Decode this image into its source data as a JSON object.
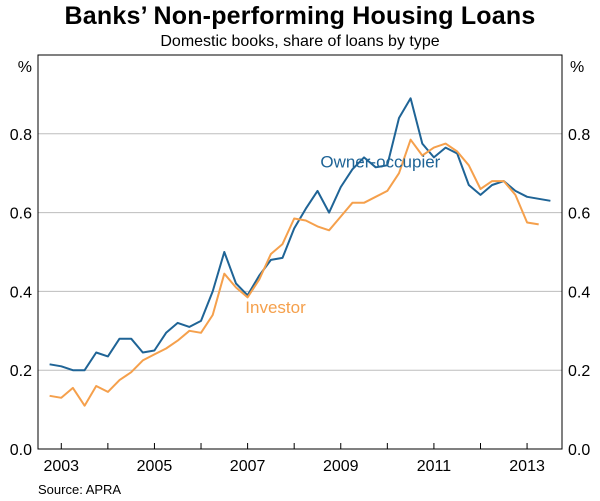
{
  "title": "Banks’ Non-performing Housing Loans",
  "subtitle": "Domestic books, share of loans by type",
  "source": "Source: APRA",
  "chart_data": {
    "type": "line",
    "title": "Banks’ Non-performing Housing Loans",
    "subtitle": "Domestic books, share of loans by type",
    "y_unit_left": "%",
    "y_unit_right": "%",
    "ylim": [
      0,
      1.0
    ],
    "yticks": [
      0.0,
      0.2,
      0.4,
      0.6,
      0.8
    ],
    "ytick_labels": [
      "0.0",
      "0.2",
      "0.4",
      "0.6",
      "0.8"
    ],
    "xlim": [
      2002.5,
      2013.75
    ],
    "xticks": [
      2003,
      2005,
      2007,
      2009,
      2011,
      2013
    ],
    "xtick_labels": [
      "2003",
      "2005",
      "2007",
      "2009",
      "2011",
      "2013"
    ],
    "grid": true,
    "series": [
      {
        "name": "Owner-occupier",
        "color": "#1f6496",
        "x": [
          2002.75,
          2003.0,
          2003.25,
          2003.5,
          2003.75,
          2004.0,
          2004.25,
          2004.5,
          2004.75,
          2005.0,
          2005.25,
          2005.5,
          2005.75,
          2006.0,
          2006.25,
          2006.5,
          2006.75,
          2007.0,
          2007.25,
          2007.5,
          2007.75,
          2008.0,
          2008.25,
          2008.5,
          2008.75,
          2009.0,
          2009.25,
          2009.5,
          2009.75,
          2010.0,
          2010.25,
          2010.5,
          2010.75,
          2011.0,
          2011.25,
          2011.5,
          2011.75,
          2012.0,
          2012.25,
          2012.5,
          2012.75,
          2013.0,
          2013.25,
          2013.5
        ],
        "values": [
          0.215,
          0.21,
          0.2,
          0.2,
          0.245,
          0.235,
          0.28,
          0.28,
          0.245,
          0.25,
          0.295,
          0.32,
          0.31,
          0.325,
          0.4,
          0.5,
          0.42,
          0.39,
          0.44,
          0.48,
          0.485,
          0.56,
          0.61,
          0.655,
          0.6,
          0.665,
          0.71,
          0.74,
          0.715,
          0.72,
          0.84,
          0.89,
          0.775,
          0.74,
          0.765,
          0.75,
          0.67,
          0.645,
          0.67,
          0.68,
          0.655,
          0.64,
          0.635,
          0.63
        ]
      },
      {
        "name": "Investor",
        "color": "#f5a04c",
        "x": [
          2002.75,
          2003.0,
          2003.25,
          2003.5,
          2003.75,
          2004.0,
          2004.25,
          2004.5,
          2004.75,
          2005.0,
          2005.25,
          2005.5,
          2005.75,
          2006.0,
          2006.25,
          2006.5,
          2006.75,
          2007.0,
          2007.25,
          2007.5,
          2007.75,
          2008.0,
          2008.25,
          2008.5,
          2008.75,
          2009.0,
          2009.25,
          2009.5,
          2009.75,
          2010.0,
          2010.25,
          2010.5,
          2010.75,
          2011.0,
          2011.25,
          2011.5,
          2011.75,
          2012.0,
          2012.25,
          2012.5,
          2012.75,
          2013.0,
          2013.25
        ],
        "values": [
          0.135,
          0.13,
          0.155,
          0.11,
          0.16,
          0.145,
          0.175,
          0.195,
          0.225,
          0.24,
          0.255,
          0.275,
          0.3,
          0.295,
          0.34,
          0.445,
          0.41,
          0.385,
          0.43,
          0.495,
          0.52,
          0.585,
          0.58,
          0.565,
          0.555,
          0.59,
          0.625,
          0.625,
          0.64,
          0.655,
          0.7,
          0.785,
          0.745,
          0.765,
          0.775,
          0.755,
          0.72,
          0.66,
          0.68,
          0.68,
          0.645,
          0.575,
          0.57
        ]
      }
    ],
    "annotations": [
      {
        "text": "Owner-occupier",
        "x": 2009.85,
        "y": 0.715
      },
      {
        "text": "Investor",
        "x": 2007.6,
        "y": 0.345
      }
    ]
  }
}
